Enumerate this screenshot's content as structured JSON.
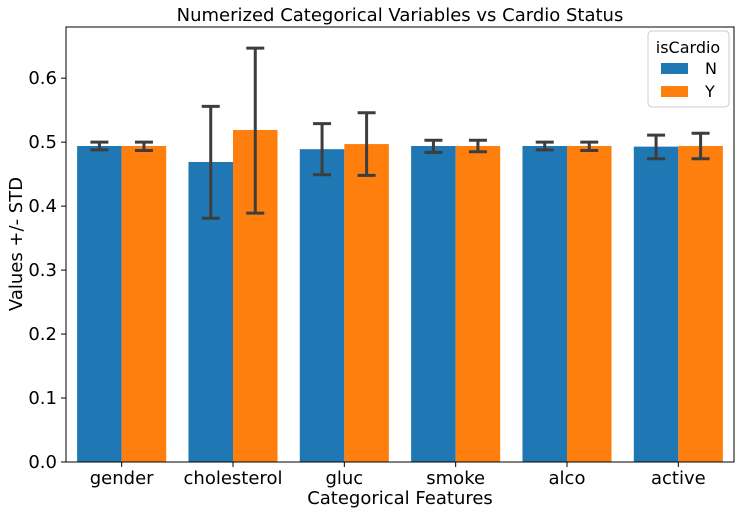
{
  "chart_data": {
    "type": "bar",
    "title": "Numerized Categorical Variables vs Cardio Status",
    "xlabel": "Categorical Features",
    "ylabel": "Values +/- STD",
    "categories": [
      "gender",
      "cholesterol",
      "gluc",
      "smoke",
      "alco",
      "active"
    ],
    "ylim": [
      0,
      0.68
    ],
    "yticks": [
      0.0,
      0.1,
      0.2,
      0.3,
      0.4,
      0.5,
      0.6
    ],
    "ytick_labels": [
      "0.0",
      "0.1",
      "0.2",
      "0.3",
      "0.4",
      "0.5",
      "0.6"
    ],
    "grid": false,
    "legend": {
      "title": "isCardio",
      "placement": "top-right"
    },
    "series": [
      {
        "name": "N",
        "color": "#1f77b4",
        "values": [
          0.494,
          0.469,
          0.489,
          0.494,
          0.494,
          0.493
        ],
        "error_low": [
          0.488,
          0.381,
          0.449,
          0.484,
          0.488,
          0.474
        ],
        "error_high": [
          0.5,
          0.556,
          0.529,
          0.503,
          0.5,
          0.511
        ]
      },
      {
        "name": "Y",
        "color": "#ff7f0e",
        "values": [
          0.494,
          0.519,
          0.497,
          0.494,
          0.494,
          0.494
        ],
        "error_low": [
          0.487,
          0.389,
          0.448,
          0.485,
          0.487,
          0.474
        ],
        "error_high": [
          0.5,
          0.647,
          0.546,
          0.503,
          0.5,
          0.514
        ]
      }
    ],
    "errorbar_color": "#3d3d3d"
  }
}
